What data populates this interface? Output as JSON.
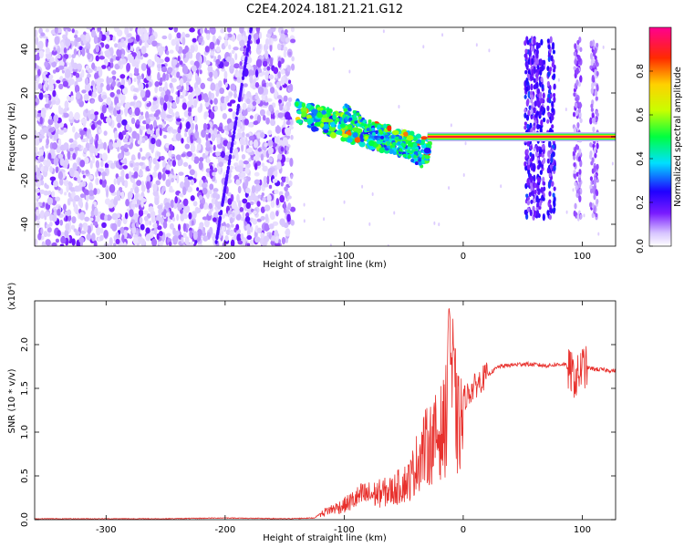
{
  "title": "C2E4.2024.181.21.21.G12",
  "colors": {
    "snr_line": "#e8312d",
    "axis": "#000000",
    "background": "#ffffff"
  },
  "chart_data": [
    {
      "type": "heatmap",
      "title": "C2E4.2024.181.21.21.G12",
      "xlabel": "Height of straight line (km)",
      "ylabel": "Frequency (Hz)",
      "xlim": [
        -360,
        128
      ],
      "ylim": [
        -50,
        50
      ],
      "x_ticks": [
        -300,
        -200,
        -100,
        0,
        100
      ],
      "y_ticks": [
        -40,
        -20,
        0,
        20,
        40
      ],
      "colorbar": {
        "label": "Normalized spectral amplitude",
        "range": [
          0.0,
          1.0
        ],
        "ticks": [
          0.0,
          0.2,
          0.4,
          0.6,
          0.8
        ],
        "colormap": "rainbow (white-violet-blue-cyan-green-yellow-red-magenta)"
      },
      "features": [
        {
          "x_range": [
            -360,
            -143
          ],
          "y_range": [
            -50,
            50
          ],
          "amplitude": 0.1
        },
        {
          "x_range": [
            -130,
            -95
          ],
          "y_range": [
            5,
            15
          ],
          "amplitude": 0.5
        },
        {
          "x_range": [
            -95,
            -40
          ],
          "y_range": [
            -12,
            15
          ],
          "amplitude": 0.45
        },
        {
          "x_range": [
            -30,
            128
          ],
          "y_range": [
            -1,
            1
          ],
          "amplitude": 0.95
        },
        {
          "x_range": [
            52,
            78
          ],
          "y_range": [
            -37,
            45
          ],
          "amplitude": 0.2
        }
      ]
    },
    {
      "type": "line",
      "xlabel": "Height of straight line (km)",
      "ylabel": "SNR (10 * v/v)",
      "y_multiplier": "(x10⁴)",
      "xlim": [
        -360,
        128
      ],
      "ylim": [
        0,
        2.5
      ],
      "x_ticks": [
        -300,
        -200,
        -100,
        0,
        100
      ],
      "y_ticks": [
        0.0,
        0.5,
        1.0,
        1.5,
        2.0
      ],
      "series": [
        {
          "color": "#e8312d",
          "x": [
            -360,
            -300,
            -250,
            -200,
            -150,
            -125,
            -115,
            -100,
            -85,
            -75,
            -60,
            -45,
            -35,
            -25,
            -15,
            -12,
            -5,
            5,
            15,
            30,
            50,
            70,
            85,
            95,
            100,
            110,
            128
          ],
          "y": [
            0.01,
            0.01,
            0.01,
            0.02,
            0.01,
            0.02,
            0.12,
            0.2,
            0.34,
            0.35,
            0.4,
            0.55,
            0.95,
            1.1,
            1.3,
            2.45,
            1.3,
            1.45,
            1.6,
            1.75,
            1.78,
            1.76,
            1.78,
            1.6,
            1.75,
            1.72,
            1.7
          ]
        }
      ]
    }
  ]
}
